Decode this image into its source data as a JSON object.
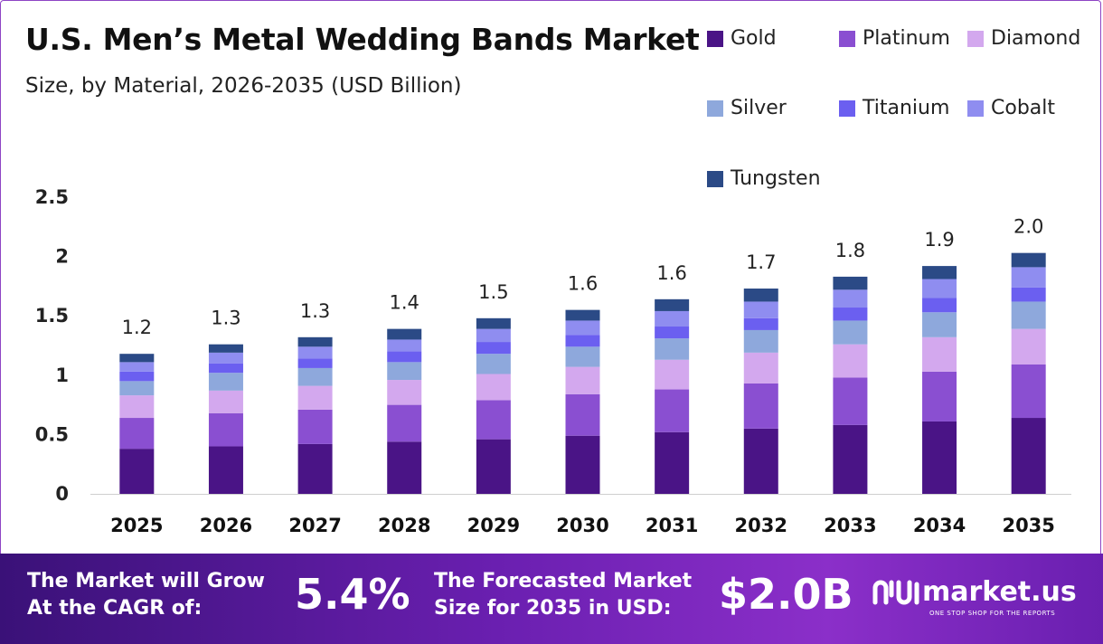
{
  "header": {
    "title": "U.S. Men’s Metal Wedding Bands Market",
    "subtitle": "Size, by Material, 2026-2035 (USD Billion)"
  },
  "legend": [
    {
      "name": "Gold",
      "color": "#4a1486"
    },
    {
      "name": "Platinum",
      "color": "#8a4fd1"
    },
    {
      "name": "Diamond",
      "color": "#d3a8ee"
    },
    {
      "name": "Silver",
      "color": "#8ea8dc"
    },
    {
      "name": "Titanium",
      "color": "#6b5ff0"
    },
    {
      "name": "Cobalt",
      "color": "#8f8df0"
    },
    {
      "name": "Tungsten",
      "color": "#2b4a86"
    }
  ],
  "chart_data": {
    "type": "bar",
    "stacked": true,
    "title": "U.S. Men’s Metal Wedding Bands Market",
    "subtitle": "Size, by Material, 2026-2035 (USD Billion)",
    "categories": [
      "2025",
      "2026",
      "2027",
      "2028",
      "2029",
      "2030",
      "2031",
      "2032",
      "2033",
      "2034",
      "2035"
    ],
    "series": [
      {
        "name": "Gold",
        "values": [
          0.38,
          0.4,
          0.42,
          0.44,
          0.46,
          0.49,
          0.52,
          0.55,
          0.58,
          0.61,
          0.64
        ]
      },
      {
        "name": "Platinum",
        "values": [
          0.26,
          0.28,
          0.29,
          0.31,
          0.33,
          0.35,
          0.36,
          0.38,
          0.4,
          0.42,
          0.45
        ]
      },
      {
        "name": "Diamond",
        "values": [
          0.19,
          0.19,
          0.2,
          0.21,
          0.22,
          0.23,
          0.25,
          0.26,
          0.28,
          0.29,
          0.3
        ]
      },
      {
        "name": "Silver",
        "values": [
          0.12,
          0.15,
          0.15,
          0.15,
          0.17,
          0.17,
          0.18,
          0.19,
          0.2,
          0.21,
          0.23
        ]
      },
      {
        "name": "Titanium",
        "values": [
          0.08,
          0.08,
          0.08,
          0.09,
          0.1,
          0.1,
          0.1,
          0.1,
          0.11,
          0.12,
          0.12
        ]
      },
      {
        "name": "Cobalt",
        "values": [
          0.08,
          0.09,
          0.1,
          0.1,
          0.11,
          0.12,
          0.13,
          0.14,
          0.15,
          0.16,
          0.17
        ]
      },
      {
        "name": "Tungsten",
        "values": [
          0.07,
          0.07,
          0.08,
          0.09,
          0.09,
          0.09,
          0.1,
          0.11,
          0.11,
          0.11,
          0.12
        ]
      }
    ],
    "totals": [
      "1.2",
      "1.3",
      "1.3",
      "1.4",
      "1.5",
      "1.6",
      "1.6",
      "1.7",
      "1.8",
      "1.9",
      "2.0"
    ],
    "y_ticks": [
      "0",
      "0.5",
      "1",
      "1.5",
      "2",
      "2.5"
    ],
    "ylim": [
      0,
      2.5
    ],
    "xlabel": "",
    "ylabel": "",
    "grid": false,
    "legend_position": "top-right"
  },
  "footer": {
    "cagr_label": [
      "The Market will Grow",
      "At the CAGR of:"
    ],
    "cagr_value": "5.4%",
    "forecast_label": [
      "The Forecasted Market",
      "Size for 2035 in USD:"
    ],
    "forecast_value": "$2.0B",
    "brand_name": "market.us",
    "brand_tagline": "ONE STOP SHOP FOR THE REPORTS"
  }
}
